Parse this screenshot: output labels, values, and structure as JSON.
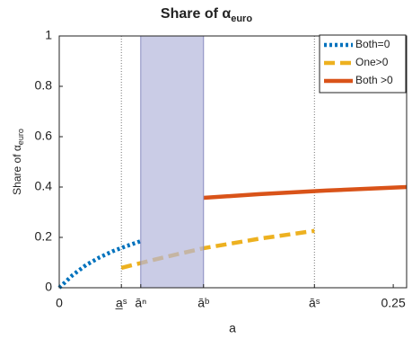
{
  "chart_data": {
    "type": "line",
    "title": "Share of α",
    "title_sub": "euro",
    "y_label": "Share of α",
    "y_label_sub": "euro",
    "x_label": "a",
    "xlim": [
      0,
      0.26
    ],
    "ylim": [
      0,
      1
    ],
    "xticks": [
      0,
      {
        "value": 0.0465,
        "label": "a̲ˢ"
      },
      {
        "value": 0.061,
        "label": "āⁿ"
      },
      {
        "value": 0.108,
        "label": "āᵇ"
      },
      {
        "value": 0.191,
        "label": "āˢ"
      },
      0.25
    ],
    "yticks": [
      0,
      {
        "value": 0.2,
        "label": "0.2"
      },
      {
        "value": 0.4,
        "label": "0.4"
      },
      {
        "value": 0.6,
        "label": "0.6"
      },
      {
        "value": 0.8,
        "label": "0.8"
      },
      1
    ],
    "vlines": [
      0.0465,
      0.191
    ],
    "shaded_xrange": [
      0.061,
      0.108
    ],
    "shade_color": "#b4b6dc",
    "legend": "upper right",
    "series": [
      {
        "name": "Both=0",
        "color": "#0072bd",
        "style": "dotted",
        "x": [
          0,
          0.01,
          0.02,
          0.03,
          0.04,
          0.05,
          0.061
        ],
        "values": [
          0,
          0.05,
          0.09,
          0.12,
          0.145,
          0.165,
          0.185
        ]
      },
      {
        "name": "One>0",
        "color": "#edb120",
        "style": "dashed",
        "x": [
          0.0465,
          0.07,
          0.09,
          0.108,
          0.13,
          0.15,
          0.17,
          0.191
        ],
        "values": [
          0.079,
          0.11,
          0.135,
          0.157,
          0.177,
          0.195,
          0.21,
          0.226
        ]
      },
      {
        "name": "Both >0",
        "color": "#d95319",
        "style": "solid",
        "x": [
          0.108,
          0.15,
          0.2,
          0.26
        ],
        "values": [
          0.357,
          0.372,
          0.386,
          0.4
        ]
      }
    ]
  }
}
